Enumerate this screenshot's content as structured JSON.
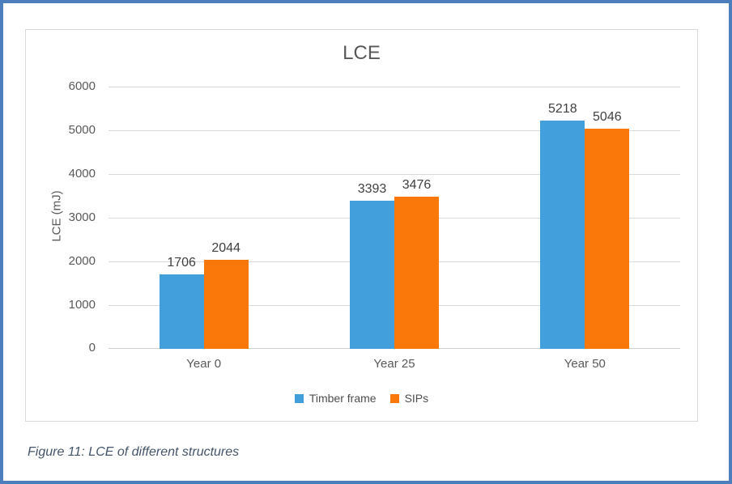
{
  "figure": {
    "caption": "Figure 11: LCE of different structures"
  },
  "chart_data": {
    "type": "bar",
    "title": "LCE",
    "xlabel": "",
    "ylabel": "LCE (mJ)",
    "categories": [
      "Year 0",
      "Year 25",
      "Year 50"
    ],
    "series": [
      {
        "name": "Timber frame",
        "color": "#429FDB",
        "values": [
          1706,
          3393,
          5218
        ]
      },
      {
        "name": "SIPs",
        "color": "#FA780A",
        "values": [
          2044,
          3476,
          5046
        ]
      }
    ],
    "ylim": [
      0,
      6000
    ],
    "yticks": [
      0,
      1000,
      2000,
      3000,
      4000,
      5000,
      6000
    ],
    "grid": true,
    "data_labels": true,
    "legend_position": "bottom"
  },
  "colors": {
    "page_border": "#4C7EBE",
    "chart_border": "#D9D9D9",
    "gridline": "#D9D9D9",
    "axis_line": "#D0D0D0",
    "title_text": "#595959",
    "axis_text": "#595959",
    "data_label_text": "#404040",
    "legend_text": "#4D4D4D",
    "caption_text": "#44546A"
  }
}
